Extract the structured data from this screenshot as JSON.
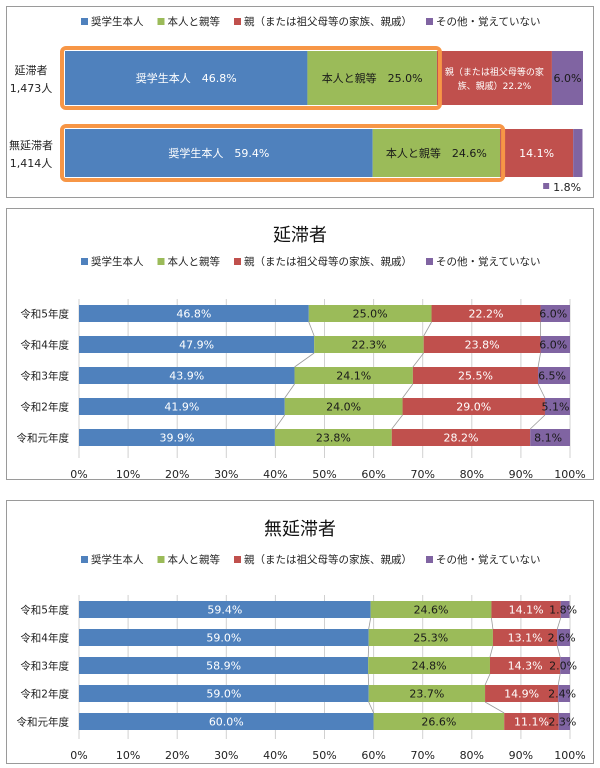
{
  "colors": {
    "series": [
      "#4f81bd",
      "#9bbb59",
      "#c0504d",
      "#8064a2"
    ],
    "highlight": "#f79646",
    "gridline": "#d0d0d0"
  },
  "legend_labels": [
    "奨学生本人",
    "本人と親等",
    "親（または祖父母等の家族、親戚）",
    "その他・覚えていない"
  ],
  "chart_data": [
    {
      "type": "bar",
      "orientation": "horizontal",
      "stacked": true,
      "title": "",
      "categories": [
        {
          "name": "延滞者",
          "count": "1,473人"
        },
        {
          "name": "無延滞者",
          "count": "1,414人"
        }
      ],
      "series": [
        {
          "name": "奨学生本人",
          "values": [
            46.8,
            59.4
          ],
          "labels": [
            "奨学生本人　46.8%",
            "奨学生本人　59.4%"
          ]
        },
        {
          "name": "本人と親等",
          "values": [
            25.0,
            24.6
          ],
          "labels": [
            "本人と親等　25.0%",
            "本人と親等　24.6%"
          ]
        },
        {
          "name": "親（または祖父母等の家族、親戚）",
          "values": [
            22.2,
            14.1
          ],
          "labels": [
            "親（または祖父母等の家|族、親戚）22.2%",
            "14.1%"
          ]
        },
        {
          "name": "その他・覚えていない",
          "values": [
            6.0,
            1.8
          ],
          "labels": [
            "6.0%",
            "1.8%"
          ]
        }
      ],
      "xlim": [
        0,
        100
      ],
      "highlighted_series": [
        "奨学生本人",
        "本人と親等"
      ]
    },
    {
      "type": "bar",
      "orientation": "horizontal",
      "stacked": true,
      "title": "延滞者",
      "categories": [
        "令和5年度",
        "令和4年度",
        "令和3年度",
        "令和2年度",
        "令和元年度"
      ],
      "series": [
        {
          "name": "奨学生本人",
          "values": [
            46.8,
            47.9,
            43.9,
            41.9,
            39.9
          ]
        },
        {
          "name": "本人と親等",
          "values": [
            25.0,
            22.3,
            24.1,
            24.0,
            23.8
          ]
        },
        {
          "name": "親（または祖父母等の家族、親戚）",
          "values": [
            22.2,
            23.8,
            25.5,
            29.0,
            28.2
          ]
        },
        {
          "name": "その他・覚えていない",
          "values": [
            6.0,
            6.0,
            6.5,
            5.1,
            8.1
          ]
        }
      ],
      "xlim": [
        0,
        100
      ],
      "xticks": [
        "0%",
        "10%",
        "20%",
        "30%",
        "40%",
        "50%",
        "60%",
        "70%",
        "80%",
        "90%",
        "100%"
      ],
      "grid": true
    },
    {
      "type": "bar",
      "orientation": "horizontal",
      "stacked": true,
      "title": "無延滞者",
      "categories": [
        "令和5年度",
        "令和4年度",
        "令和3年度",
        "令和2年度",
        "令和元年度"
      ],
      "series": [
        {
          "name": "奨学生本人",
          "values": [
            59.4,
            59.0,
            58.9,
            59.0,
            60.0
          ]
        },
        {
          "name": "本人と親等",
          "values": [
            24.6,
            25.3,
            24.8,
            23.7,
            26.6
          ]
        },
        {
          "name": "親（または祖父母等の家族、親戚）",
          "values": [
            14.1,
            13.1,
            14.3,
            14.9,
            11.1
          ]
        },
        {
          "name": "その他・覚えていない",
          "values": [
            1.8,
            2.6,
            2.0,
            2.4,
            2.3
          ]
        }
      ],
      "xlim": [
        0,
        100
      ],
      "xticks": [
        "0%",
        "10%",
        "20%",
        "30%",
        "40%",
        "50%",
        "60%",
        "70%",
        "80%",
        "90%",
        "100%"
      ],
      "grid": true
    }
  ]
}
